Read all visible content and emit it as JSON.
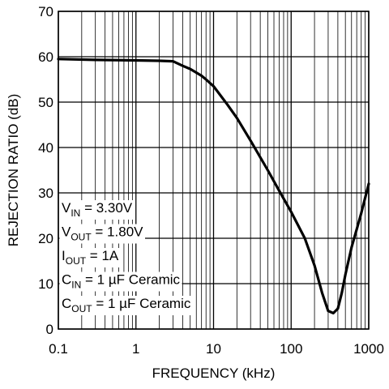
{
  "chart_data": {
    "type": "line",
    "title": "",
    "xlabel": "FREQUENCY (kHz)",
    "ylabel": "REJECTION RATIO (dB)",
    "xscale": "log",
    "xlim": [
      0.1,
      1000
    ],
    "ylim": [
      0,
      70
    ],
    "grid": true,
    "x_ticks": [
      {
        "value": 0.1,
        "label": "0.1"
      },
      {
        "value": 1,
        "label": "1"
      },
      {
        "value": 10,
        "label": "10"
      },
      {
        "value": 100,
        "label": "100"
      },
      {
        "value": 1000,
        "label": "1000"
      }
    ],
    "y_ticks": [
      {
        "value": 0,
        "label": "0"
      },
      {
        "value": 10,
        "label": "10"
      },
      {
        "value": 20,
        "label": "20"
      },
      {
        "value": 30,
        "label": "30"
      },
      {
        "value": 40,
        "label": "40"
      },
      {
        "value": 50,
        "label": "50"
      },
      {
        "value": 60,
        "label": "60"
      },
      {
        "value": 70,
        "label": "70"
      }
    ],
    "series": [
      {
        "color": "#000000",
        "x": [
          0.1,
          0.3,
          1,
          2,
          3,
          4,
          5,
          6,
          7,
          8,
          10,
          15,
          20,
          30,
          50,
          70,
          100,
          150,
          200,
          250,
          300,
          350,
          400,
          450,
          500,
          600,
          700,
          800,
          1000
        ],
        "y": [
          59.5,
          59.3,
          59.2,
          59.1,
          59.0,
          58.0,
          57.3,
          56.5,
          55.8,
          55.0,
          53.5,
          49.5,
          46.5,
          41.5,
          35.0,
          30.5,
          25.8,
          20.0,
          14.0,
          8.0,
          4.0,
          3.5,
          4.5,
          8.0,
          12.0,
          18.0,
          22.0,
          25.5,
          32.0
        ]
      }
    ],
    "annotations": [
      {
        "main": "V",
        "sub": "IN",
        "rest": " = 3.30V"
      },
      {
        "main": "V",
        "sub": "OUT",
        "rest": " = 1.80V"
      },
      {
        "main": "I",
        "sub": "OUT",
        "rest": " = 1A"
      },
      {
        "main": "C",
        "sub": "IN",
        "rest": " = 1 µF Ceramic"
      },
      {
        "main": "C",
        "sub": "OUT",
        "rest": " = 1 µF Ceramic"
      }
    ]
  }
}
